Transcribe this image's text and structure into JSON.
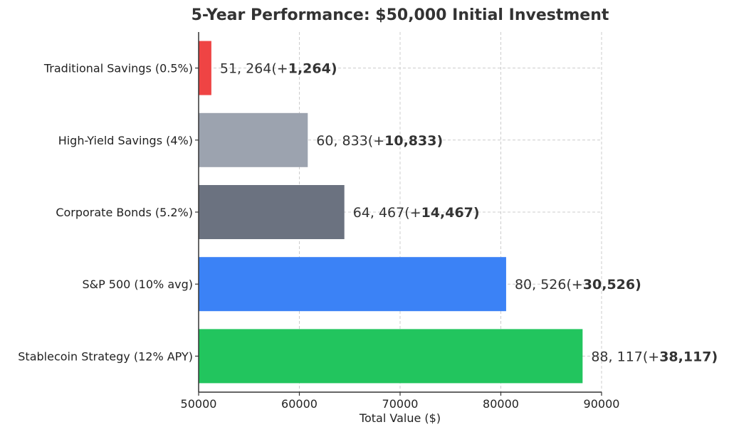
{
  "chart_data": {
    "type": "bar",
    "orientation": "horizontal",
    "title": "5-Year Performance: $50,000 Initial Investment",
    "xlabel": "Total Value ($)",
    "ylabel": "",
    "xlim": [
      50000,
      90000
    ],
    "xticks": [
      50000,
      60000,
      70000,
      80000,
      90000
    ],
    "xtick_labels": [
      "50000",
      "60000",
      "70000",
      "80000",
      "90000"
    ],
    "grid": true,
    "categories": [
      "Traditional Savings (0.5%)",
      "High-Yield Savings (4%)",
      "Corporate Bonds (5.2%)",
      "S&P 500 (10% avg)",
      "Stablecoin Strategy (12% APY)"
    ],
    "values": [
      51264,
      60833,
      64467,
      80526,
      88117
    ],
    "colors": [
      "#ef4444",
      "#9ca3af",
      "#6b7280",
      "#3b82f6",
      "#22c55e"
    ],
    "data_labels": [
      {
        "value": "51, 264(+",
        "gain": "1,264)"
      },
      {
        "value": "60, 833(+",
        "gain": "10,833)"
      },
      {
        "value": "64, 467(+",
        "gain": "14,467)"
      },
      {
        "value": "80, 526(+",
        "gain": "30,526)"
      },
      {
        "value": "88, 117(+",
        "gain": "38,117)"
      }
    ]
  }
}
